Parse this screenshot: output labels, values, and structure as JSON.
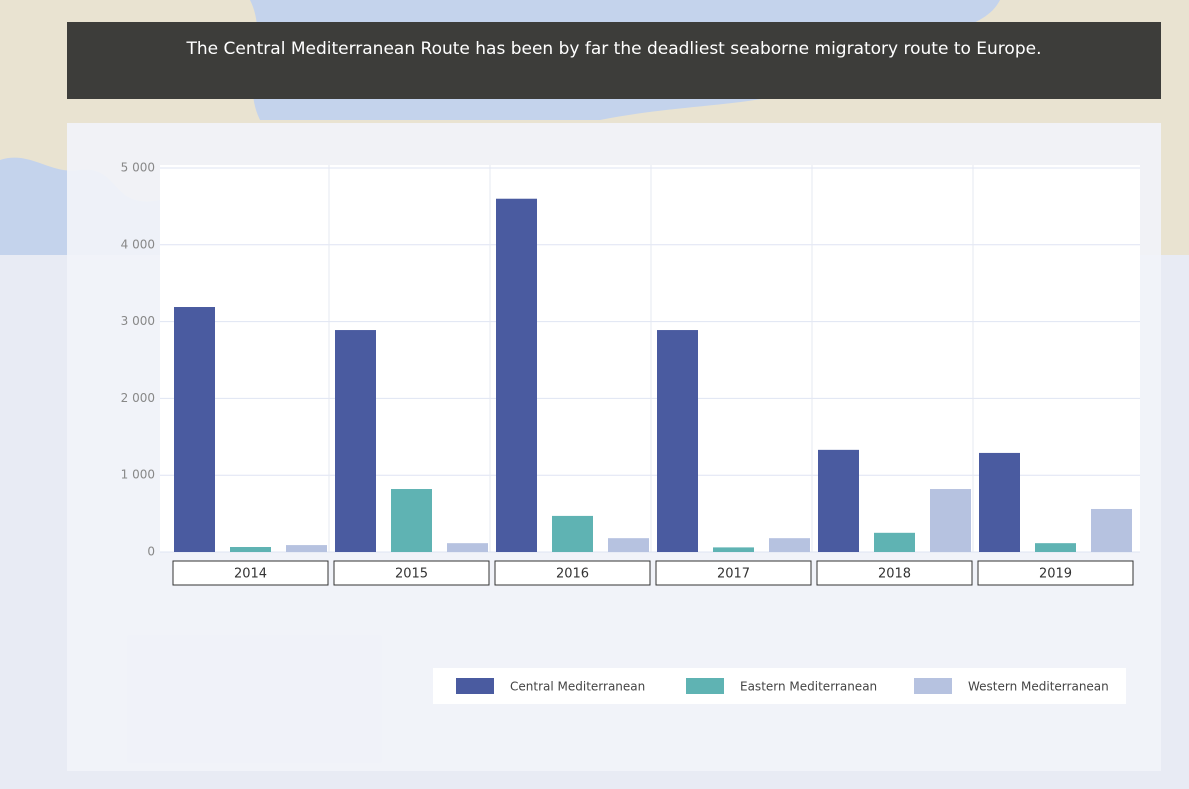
{
  "chart_data": {
    "type": "bar",
    "title": "The Central Mediterranean Route has been by far the deadliest seaborne migratory route to Europe.",
    "categories": [
      "2014",
      "2015",
      "2016",
      "2017",
      "2018",
      "2019"
    ],
    "series": [
      {
        "name": "Central Mediterranean",
        "color": "#4a5ba0",
        "values": [
          3190,
          2890,
          4600,
          2890,
          1330,
          1290
        ]
      },
      {
        "name": "Eastern Mediterranean",
        "color": "#5fb3b3",
        "values": [
          65,
          820,
          470,
          60,
          250,
          115
        ]
      },
      {
        "name": "Western Mediterranean",
        "color": "#b6c2e0",
        "values": [
          90,
          115,
          180,
          180,
          820,
          560
        ]
      }
    ],
    "ylim": [
      0,
      5000
    ],
    "yticks": [
      0,
      {
        "value": 1000,
        "label": "1 000"
      },
      {
        "value": 2000,
        "label": "2 000"
      },
      {
        "value": 3000,
        "label": "3 000"
      },
      {
        "value": 4000,
        "label": "4 000"
      },
      {
        "value": 5000,
        "label": "5 000"
      }
    ],
    "grid": true,
    "legend": "bottom-right"
  }
}
